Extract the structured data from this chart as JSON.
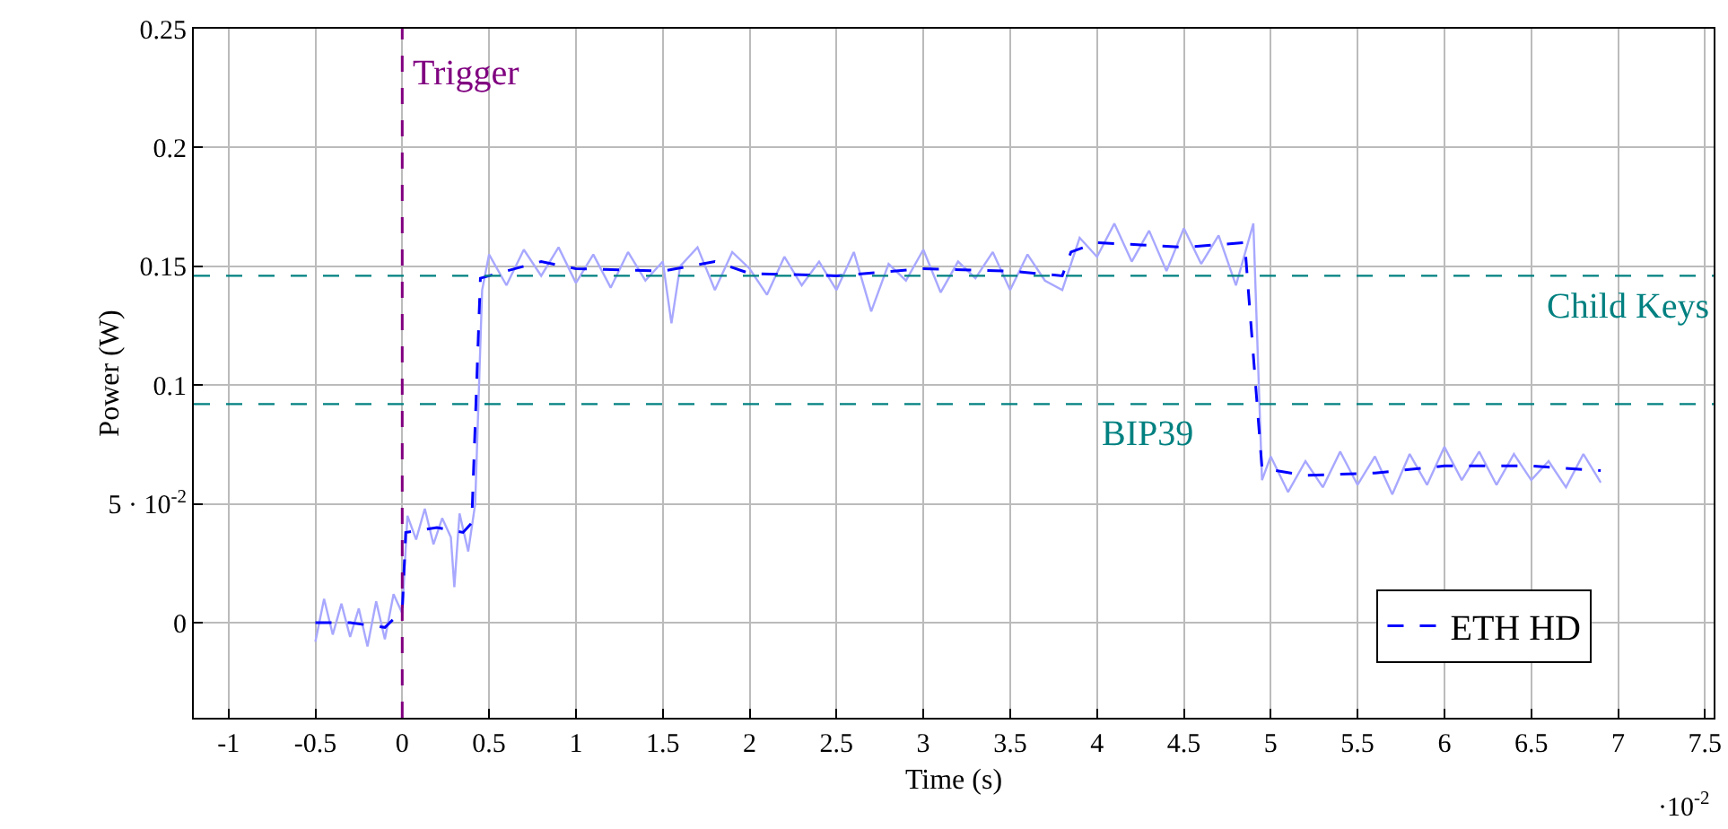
{
  "chart_data": {
    "type": "line",
    "xlabel": "Time (s)",
    "ylabel": "Power (W)",
    "xlim": [
      -1.2,
      7.55
    ],
    "xticks": [
      -1,
      -0.5,
      0,
      0.5,
      1,
      1.5,
      2,
      2.5,
      3,
      3.5,
      4,
      4.5,
      5,
      5.5,
      6,
      6.5,
      7,
      7.5
    ],
    "ylim": [
      -0.04,
      0.25
    ],
    "yticks": [
      0,
      {
        "value": 0.05,
        "label": "5 · 10$^{-2}$"
      },
      0.1,
      0.15,
      0.2,
      0.25
    ],
    "grid": true,
    "legend": "bottom right",
    "marker": "none",
    "series": [
      {
        "color": "#a8a8ff",
        "line_style": "solid",
        "x": [
          -0.5,
          -0.45,
          -0.4,
          -0.35,
          -0.3,
          -0.25,
          -0.2,
          -0.15,
          -0.1,
          -0.05,
          0,
          0.03,
          0.08,
          0.13,
          0.18,
          0.23,
          0.28,
          0.3,
          0.33,
          0.38,
          0.42,
          0.46,
          0.5,
          0.6,
          0.7,
          0.8,
          0.9,
          1,
          1.1,
          1.2,
          1.3,
          1.4,
          1.5,
          1.55,
          1.6,
          1.7,
          1.8,
          1.9,
          2,
          2.1,
          2.2,
          2.3,
          2.4,
          2.5,
          2.6,
          2.7,
          2.8,
          2.9,
          3,
          3.1,
          3.2,
          3.3,
          3.4,
          3.5,
          3.6,
          3.7,
          3.8,
          3.9,
          4,
          4.1,
          4.2,
          4.3,
          4.4,
          4.5,
          4.6,
          4.7,
          4.8,
          4.9,
          4.95,
          5,
          5.1,
          5.2,
          5.3,
          5.4,
          5.5,
          5.6,
          5.7,
          5.8,
          5.9,
          6,
          6.1,
          6.2,
          6.3,
          6.4,
          6.5,
          6.6,
          6.7,
          6.8,
          6.9
        ],
        "values": [
          -0.008,
          0.01,
          -0.005,
          0.008,
          -0.006,
          0.006,
          -0.01,
          0.009,
          -0.007,
          0.012,
          0.004,
          0.045,
          0.035,
          0.048,
          0.033,
          0.044,
          0.036,
          0.015,
          0.046,
          0.03,
          0.05,
          0.14,
          0.155,
          0.142,
          0.157,
          0.146,
          0.158,
          0.143,
          0.155,
          0.141,
          0.156,
          0.144,
          0.152,
          0.126,
          0.15,
          0.158,
          0.14,
          0.156,
          0.149,
          0.138,
          0.154,
          0.142,
          0.152,
          0.14,
          0.156,
          0.131,
          0.151,
          0.144,
          0.157,
          0.139,
          0.152,
          0.145,
          0.156,
          0.14,
          0.155,
          0.144,
          0.14,
          0.162,
          0.154,
          0.168,
          0.152,
          0.165,
          0.148,
          0.166,
          0.151,
          0.163,
          0.142,
          0.168,
          0.06,
          0.07,
          0.055,
          0.068,
          0.057,
          0.072,
          0.058,
          0.07,
          0.054,
          0.071,
          0.058,
          0.074,
          0.06,
          0.072,
          0.058,
          0.071,
          0.06,
          0.068,
          0.057,
          0.071,
          0.059
        ]
      },
      {
        "name": "ETH HD",
        "color": "#0000ff",
        "line_style": "dashed",
        "x": [
          -0.5,
          -0.3,
          -0.1,
          0,
          0.02,
          0.2,
          0.35,
          0.4,
          0.45,
          0.6,
          0.8,
          1,
          1.5,
          1.8,
          2,
          2.5,
          3,
          3.5,
          3.8,
          3.85,
          4,
          4.5,
          4.85,
          4.95,
          5.2,
          5.6,
          6,
          6.5,
          6.9
        ],
        "values": [
          0,
          0,
          -0.002,
          0.005,
          0.038,
          0.04,
          0.038,
          0.042,
          0.145,
          0.148,
          0.152,
          0.149,
          0.148,
          0.152,
          0.147,
          0.146,
          0.149,
          0.148,
          0.146,
          0.156,
          0.16,
          0.158,
          0.16,
          0.065,
          0.062,
          0.063,
          0.066,
          0.066,
          0.064
        ]
      }
    ],
    "ref_lines": [
      {
        "axis": "x",
        "value": 0,
        "label": "Trigger",
        "color": "#800080",
        "line_style": "dashed"
      },
      {
        "axis": "y",
        "value": 0.146,
        "label": "Child Keys",
        "color": "#008080",
        "line_style": "dashed"
      },
      {
        "axis": "y",
        "value": 0.092,
        "label": "BIP39",
        "color": "#008080",
        "line_style": "dashed"
      }
    ],
    "annotations": [
      "·10$^{-2}$"
    ]
  }
}
